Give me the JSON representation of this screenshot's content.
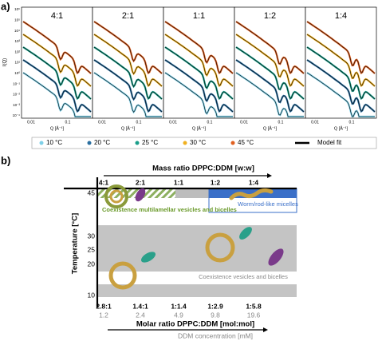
{
  "panel_a": {
    "label": "a)",
    "y_axis_label": "I(Q)",
    "x_axis_label": "Q [Å⁻¹]",
    "panel_titles": [
      "4:1",
      "2:1",
      "1:1",
      "1:2",
      "1:4"
    ],
    "y_ticks": [
      "10⁶",
      "10⁵",
      "10⁴",
      "10³",
      "10²",
      "10¹",
      "10⁰",
      "10⁻¹",
      "10⁻²",
      "10⁻³",
      "10⁻⁴"
    ],
    "x_ticks": [
      "0.01",
      "0.1"
    ],
    "legend": [
      "10 °C",
      "20 °C",
      "25 °C",
      "30 °C",
      "45 °C",
      "Model fit"
    ]
  },
  "panel_b": {
    "label": "b)",
    "top_axis_label": "Mass ratio DPPC:DDM  [w:w]",
    "mass_ratios": [
      "4:1",
      "2:1",
      "1:1",
      "1:2",
      "1:4"
    ],
    "y_axis_label": "Temperature [°C]",
    "y_ticks": [
      "45",
      "30",
      "25",
      "20",
      "10"
    ],
    "regions": [
      "Coexistence multilamellar vesicles and bicelles",
      "Worm/rod-like micelles",
      "Coexistence vesicles and bicelles"
    ],
    "molar_ratios": [
      "2.8:1",
      "1.4:1",
      "1:1.4",
      "1:2.9",
      "1:5.8"
    ],
    "ddm_concentrations": [
      "1.2",
      "2.4",
      "4.9",
      "9.8",
      "19.6"
    ],
    "bottom_axis_label": "Molar ratio DPPC:DDM  [mol:mol]",
    "concentration_label": "DDM concentration  [mM]"
  }
}
